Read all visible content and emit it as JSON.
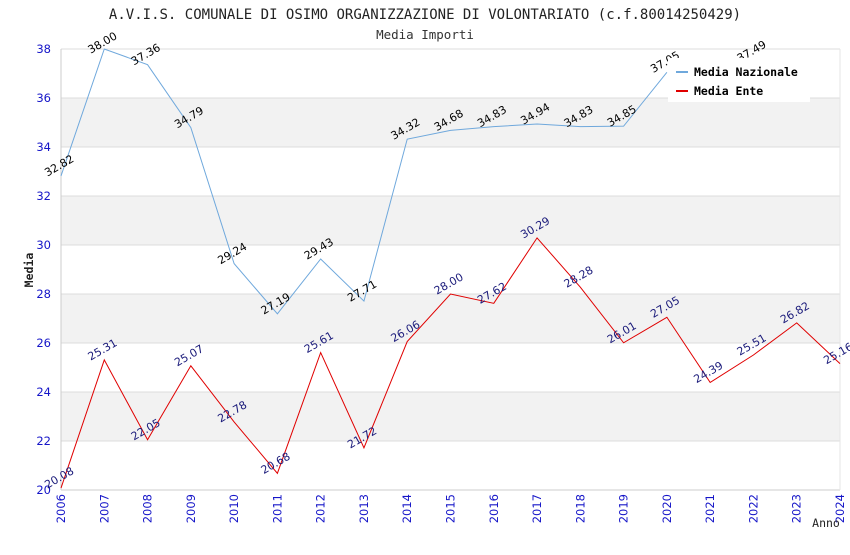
{
  "colors": {
    "series_nazionale": "#6fa8dc",
    "series_ente": "#e00000",
    "axis_tick_labels": "#1515c8",
    "label_nazionale": "#000000",
    "label_ente": "#1a1a7a",
    "band": "#f2f2f2",
    "grid": "#dcdcdc"
  },
  "chart_data": {
    "type": "line",
    "title": "A.V.I.S. COMUNALE DI OSIMO ORGANIZZAZIONE DI VOLONTARIATO (c.f.80014250429)",
    "subtitle": "Media Importi",
    "xlabel": "Anno",
    "ylabel": "Media",
    "ylim": [
      20,
      38
    ],
    "y_ticks": [
      20,
      22,
      24,
      26,
      28,
      30,
      32,
      34,
      36,
      38
    ],
    "x": [
      2006,
      2007,
      2008,
      2009,
      2010,
      2011,
      2012,
      2013,
      2014,
      2015,
      2016,
      2017,
      2018,
      2019,
      2020,
      2021,
      2022,
      2023,
      2024
    ],
    "grid": true,
    "legend_position": "top-right",
    "series": [
      {
        "name": "Media Nazionale",
        "values": [
          32.82,
          38.0,
          37.36,
          34.79,
          29.24,
          27.19,
          29.43,
          27.71,
          34.32,
          34.68,
          34.83,
          34.94,
          34.83,
          34.85,
          37.05,
          null,
          37.49,
          null,
          null
        ],
        "labels": [
          "32.82",
          "38.00",
          "37.36",
          "34.79",
          "29.24",
          "27.19",
          "29.43",
          "27.71",
          "34.32",
          "34.68",
          "34.83",
          "34.94",
          "34.83",
          "34.85",
          "37.05",
          "",
          "37.49",
          "",
          ""
        ]
      },
      {
        "name": "Media Ente",
        "values": [
          20.08,
          25.31,
          22.05,
          25.07,
          22.78,
          20.68,
          25.61,
          21.72,
          26.06,
          28.0,
          27.62,
          30.29,
          28.28,
          26.01,
          27.05,
          24.39,
          25.51,
          26.82,
          25.16
        ],
        "labels": [
          "20.08",
          "25.31",
          "22.05",
          "25.07",
          "22.78",
          "20.68",
          "25.61",
          "21.72",
          "26.06",
          "28.00",
          "27.62",
          "30.29",
          "28.28",
          "26.01",
          "27.05",
          "24.39",
          "25.51",
          "26.82",
          "25.16"
        ]
      }
    ]
  }
}
